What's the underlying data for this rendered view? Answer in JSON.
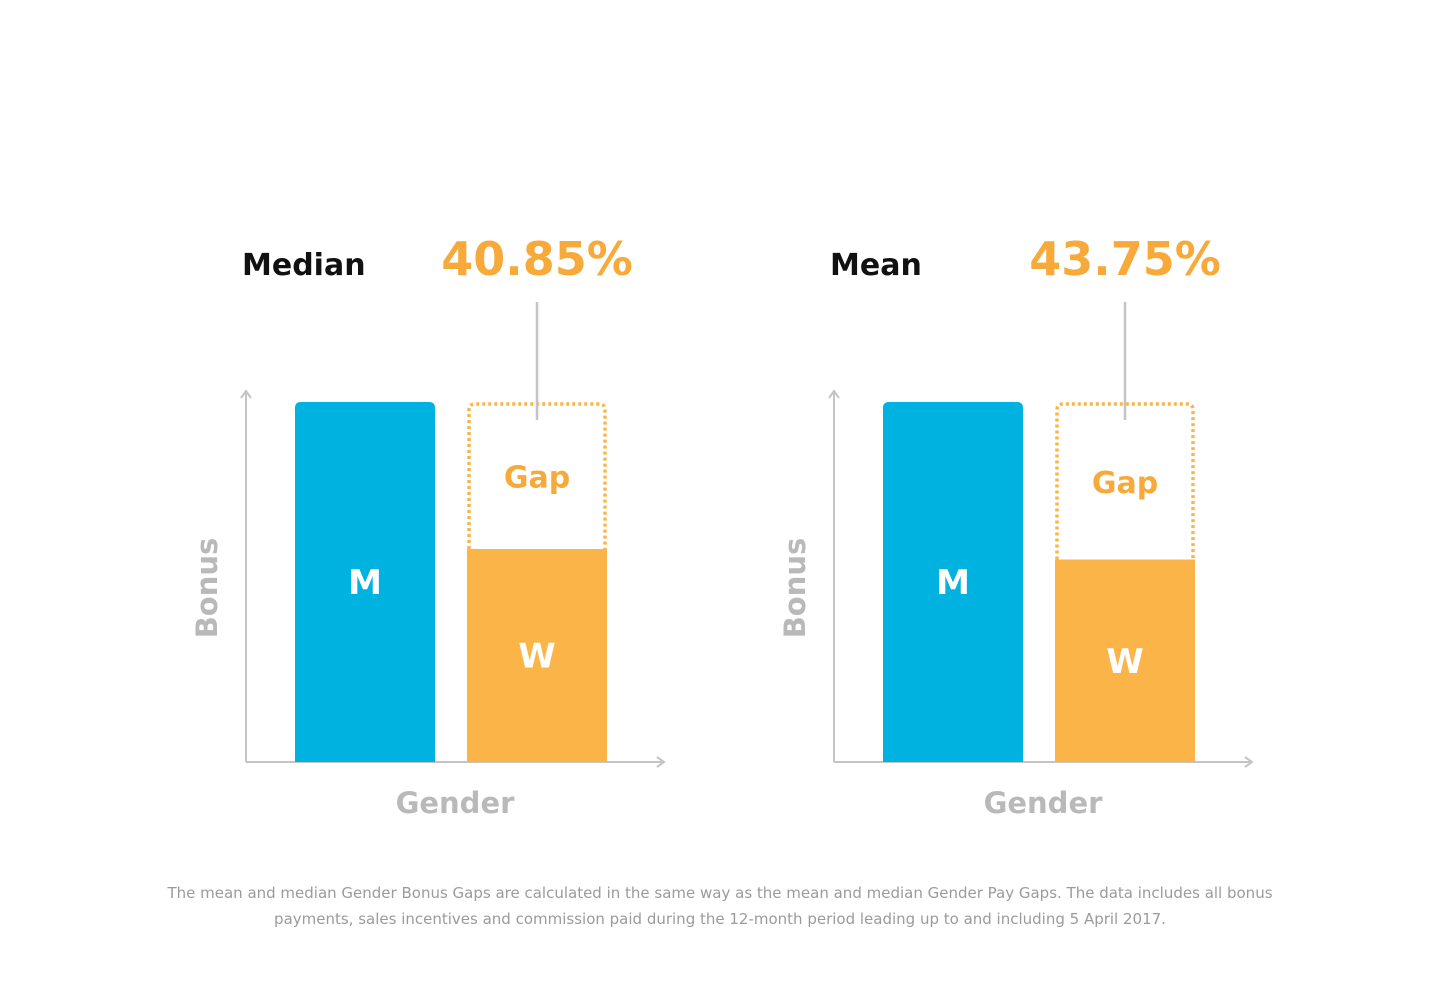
{
  "colors": {
    "men": "#00b2e0",
    "women": "#fbb447",
    "axis": "#c4c4c4",
    "axis_label": "#b9b9b9",
    "title": "#111111",
    "gap_text": "#f7a93a",
    "bar_label": "#ffffff"
  },
  "chart_data": [
    {
      "type": "bar",
      "title": "Median",
      "gap_label": "40.85%",
      "xlabel": "Gender",
      "ylabel": "Bonus",
      "categories": [
        "M",
        "W"
      ],
      "values": [
        100,
        59.15
      ],
      "gap_value": 40.85,
      "gap_text": "Gap",
      "ylim": [
        0,
        100
      ],
      "grid": false,
      "legend": "none"
    },
    {
      "type": "bar",
      "title": "Mean",
      "gap_label": "43.75%",
      "xlabel": "Gender",
      "ylabel": "Bonus",
      "categories": [
        "M",
        "W"
      ],
      "values": [
        100,
        56.25
      ],
      "gap_value": 43.75,
      "gap_text": "Gap",
      "ylim": [
        0,
        100
      ],
      "grid": false,
      "legend": "none"
    }
  ],
  "footnote": {
    "line1": "The mean and median Gender Bonus Gaps are calculated in the same way as the mean and median Gender Pay Gaps. The data includes all bonus",
    "line2": "payments, sales incentives and commission paid during the 12-month period leading up to and including 5 April 2017."
  }
}
